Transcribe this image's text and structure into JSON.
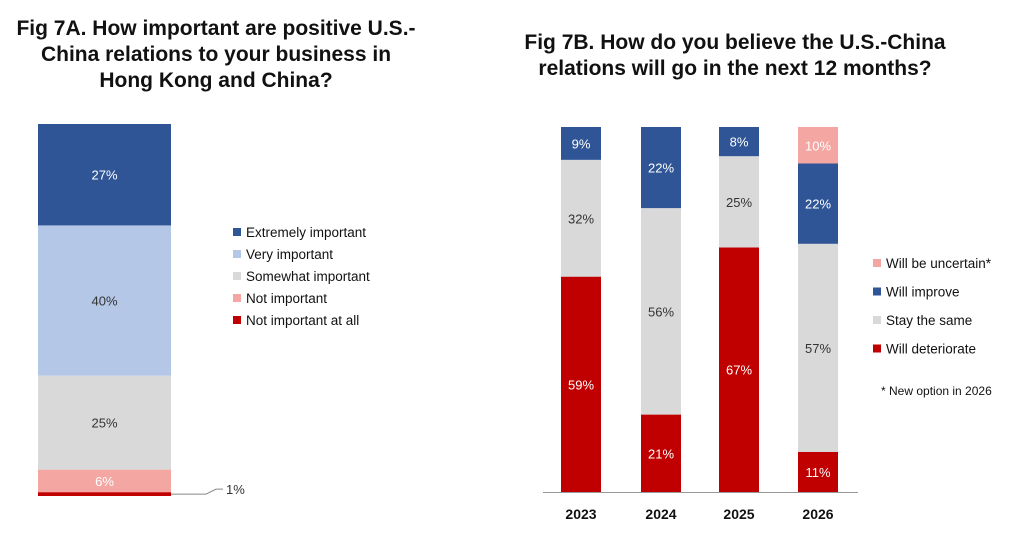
{
  "chart_data": [
    {
      "type": "bar",
      "stacked": true,
      "title_lines": [
        "Fig 7A. How important are positive U.S.-",
        "China relations to your business in",
        "Hong Kong and China?"
      ],
      "categories": [
        ""
      ],
      "series": [
        {
          "name": "Extremely important",
          "values": [
            27
          ],
          "color": "#2f5597",
          "label": "27%"
        },
        {
          "name": "Very important",
          "values": [
            40
          ],
          "color": "#b4c7e7",
          "label": "40%"
        },
        {
          "name": "Somewhat important",
          "values": [
            25
          ],
          "color": "#d9d9d9",
          "label": "25%"
        },
        {
          "name": "Not important",
          "values": [
            6
          ],
          "color": "#f4a6a3",
          "label": "6%"
        },
        {
          "name": "Not important at all",
          "values": [
            1
          ],
          "color": "#c00000",
          "label": "1%"
        }
      ],
      "legend_position": "right",
      "grid": false
    },
    {
      "type": "bar",
      "stacked": true,
      "title_lines": [
        "Fig 7B. How do you believe the U.S.-China",
        "relations will go in the next 12 months?"
      ],
      "categories": [
        "2023",
        "2024",
        "2025",
        "2026"
      ],
      "series": [
        {
          "name": "Will be uncertain*",
          "values": [
            0,
            0,
            0,
            10
          ],
          "color": "#f4a6a3",
          "labels": [
            "",
            "",
            "",
            "10%"
          ]
        },
        {
          "name": "Will improve",
          "values": [
            9,
            22,
            8,
            22
          ],
          "color": "#2f5597",
          "labels": [
            "9%",
            "22%",
            "8%",
            "22%"
          ]
        },
        {
          "name": "Stay the same",
          "values": [
            32,
            56,
            25,
            57
          ],
          "color": "#d9d9d9",
          "labels": [
            "32%",
            "56%",
            "25%",
            "57%"
          ]
        },
        {
          "name": "Will deteriorate",
          "values": [
            59,
            21,
            67,
            11
          ],
          "color": "#c00000",
          "labels": [
            "59%",
            "21%",
            "67%",
            "11%"
          ]
        }
      ],
      "footnote": "* New option in 2026",
      "legend_position": "right",
      "grid": false
    }
  ]
}
